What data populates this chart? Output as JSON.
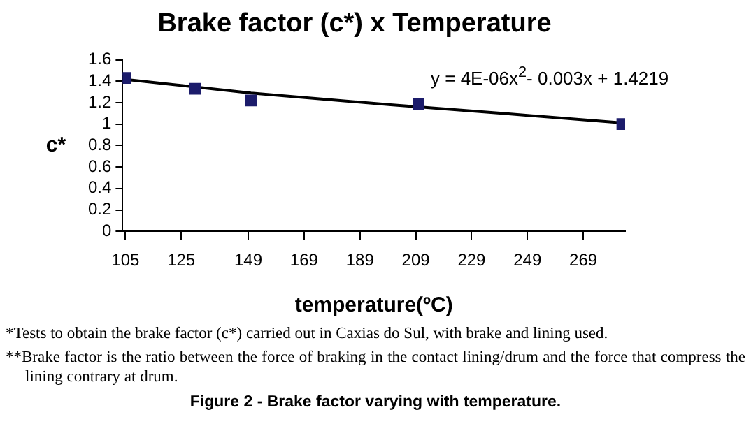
{
  "chart_data": {
    "type": "scatter",
    "title": "Brake factor (c*) x Temperature",
    "xlabel": "temperature(ºC)",
    "ylabel": "c*",
    "series": [
      {
        "type": "scatter",
        "color": "#1c1c6b",
        "marker": "square",
        "x": [
          105,
          130,
          150,
          210,
          283
        ],
        "values": [
          1.43,
          1.33,
          1.22,
          1.19,
          1.0
        ]
      },
      {
        "type": "line",
        "color": "#000000",
        "marker": "none",
        "line_style": "solid",
        "x": [
          104,
          150,
          200,
          240,
          284
        ],
        "values": [
          1.42,
          1.29,
          1.18,
          1.1,
          1.01
        ]
      }
    ],
    "xlim": [
      104,
      284
    ],
    "xticks": [
      105,
      125,
      149,
      169,
      189,
      209,
      229,
      249,
      269
    ],
    "ylim": [
      0,
      1.6
    ],
    "yticks": [
      0,
      0.2,
      0.4,
      0.6,
      0.8,
      1,
      1.2,
      1.4,
      1.6
    ],
    "grid": false,
    "legend": false,
    "annotations": [
      "y = 4E-06x$^{2}$- 0.003x + 1.4219",
      "*Tests to obtain the brake factor (c*) carried out in Caxias do Sul, with brake and lining used.",
      "**Brake factor is the ratio between the force of braking in the contact lining/drum and the force that compress the lining contrary at drum.",
      "Figure 2 - Brake factor varying with temperature."
    ]
  }
}
